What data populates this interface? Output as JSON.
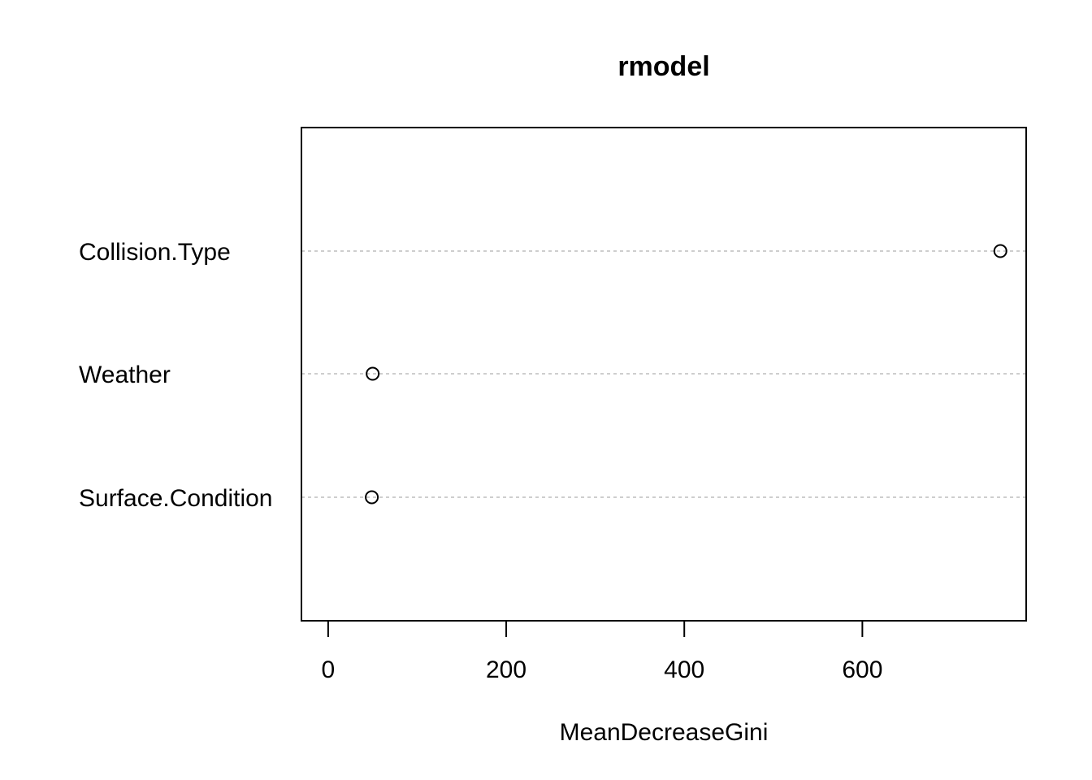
{
  "chart_data": {
    "type": "scatter",
    "title": "rmodel",
    "xlabel": "MeanDecreaseGini",
    "ylabel": "",
    "categories": [
      "Surface.Condition",
      "Weather",
      "Collision.Type"
    ],
    "values": [
      49,
      50,
      755
    ],
    "xlim": [
      -30,
      784
    ],
    "xticks": [
      0,
      200,
      400,
      600
    ],
    "grid": "dotted horizontal per category",
    "legend": "none",
    "point_style": "open-circle"
  }
}
